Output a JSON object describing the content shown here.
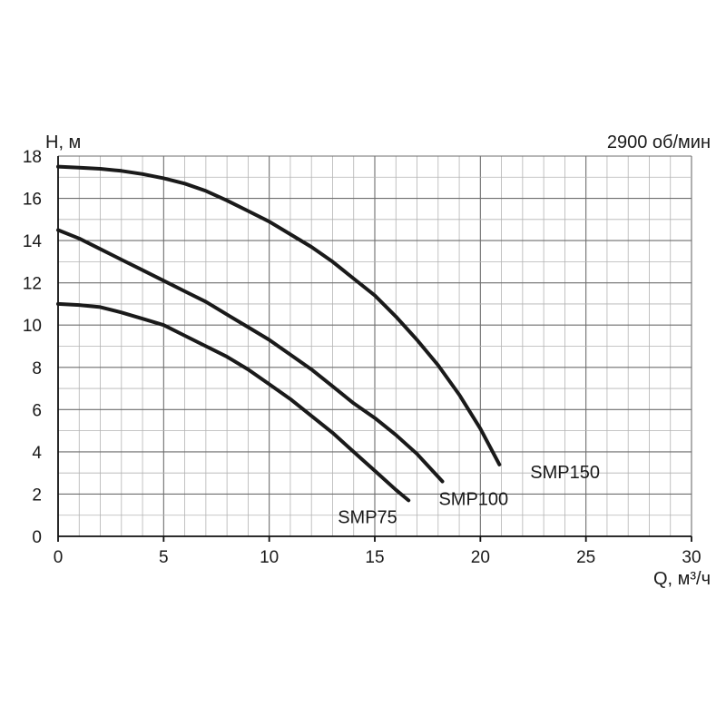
{
  "chart_data": {
    "type": "line",
    "title": "",
    "annotation": "2900 об/мин",
    "xlabel": "Q, м³/ч",
    "ylabel": "H, м",
    "xlim": [
      0,
      30
    ],
    "ylim": [
      0,
      18
    ],
    "x_ticks": [
      0,
      5,
      10,
      15,
      20,
      25,
      30
    ],
    "y_ticks": [
      0,
      2,
      4,
      6,
      8,
      10,
      12,
      14,
      16,
      18
    ],
    "x_minor_step": 1,
    "y_minor_step": 1,
    "grid": true,
    "series": [
      {
        "name": "SMP75",
        "color": "#1a1a1a",
        "points": [
          [
            0,
            11.0
          ],
          [
            1,
            10.95
          ],
          [
            2,
            10.85
          ],
          [
            3,
            10.6
          ],
          [
            4,
            10.3
          ],
          [
            5,
            10.0
          ],
          [
            6,
            9.5
          ],
          [
            7,
            9.0
          ],
          [
            8,
            8.5
          ],
          [
            9,
            7.9
          ],
          [
            10,
            7.2
          ],
          [
            11,
            6.5
          ],
          [
            12,
            5.7
          ],
          [
            13,
            4.9
          ],
          [
            14,
            4.0
          ],
          [
            15,
            3.1
          ],
          [
            16,
            2.2
          ],
          [
            16.6,
            1.7
          ]
        ]
      },
      {
        "name": "SMP100",
        "color": "#1a1a1a",
        "points": [
          [
            0,
            14.5
          ],
          [
            1,
            14.1
          ],
          [
            2,
            13.6
          ],
          [
            3,
            13.1
          ],
          [
            4,
            12.6
          ],
          [
            5,
            12.1
          ],
          [
            6,
            11.6
          ],
          [
            7,
            11.1
          ],
          [
            8,
            10.5
          ],
          [
            9,
            9.9
          ],
          [
            10,
            9.3
          ],
          [
            11,
            8.6
          ],
          [
            12,
            7.9
          ],
          [
            13,
            7.1
          ],
          [
            14,
            6.3
          ],
          [
            15,
            5.6
          ],
          [
            16,
            4.8
          ],
          [
            17,
            3.9
          ],
          [
            18.2,
            2.6
          ]
        ]
      },
      {
        "name": "SMP150",
        "color": "#1a1a1a",
        "points": [
          [
            0,
            17.5
          ],
          [
            1,
            17.45
          ],
          [
            2,
            17.4
          ],
          [
            3,
            17.3
          ],
          [
            4,
            17.15
          ],
          [
            5,
            16.95
          ],
          [
            6,
            16.7
          ],
          [
            7,
            16.35
          ],
          [
            8,
            15.9
          ],
          [
            9,
            15.4
          ],
          [
            10,
            14.9
          ],
          [
            11,
            14.3
          ],
          [
            12,
            13.7
          ],
          [
            13,
            13.0
          ],
          [
            14,
            12.2
          ],
          [
            15,
            11.4
          ],
          [
            16,
            10.4
          ],
          [
            17,
            9.3
          ],
          [
            18,
            8.1
          ],
          [
            19,
            6.7
          ],
          [
            20,
            5.1
          ],
          [
            20.9,
            3.4
          ]
        ]
      }
    ]
  }
}
